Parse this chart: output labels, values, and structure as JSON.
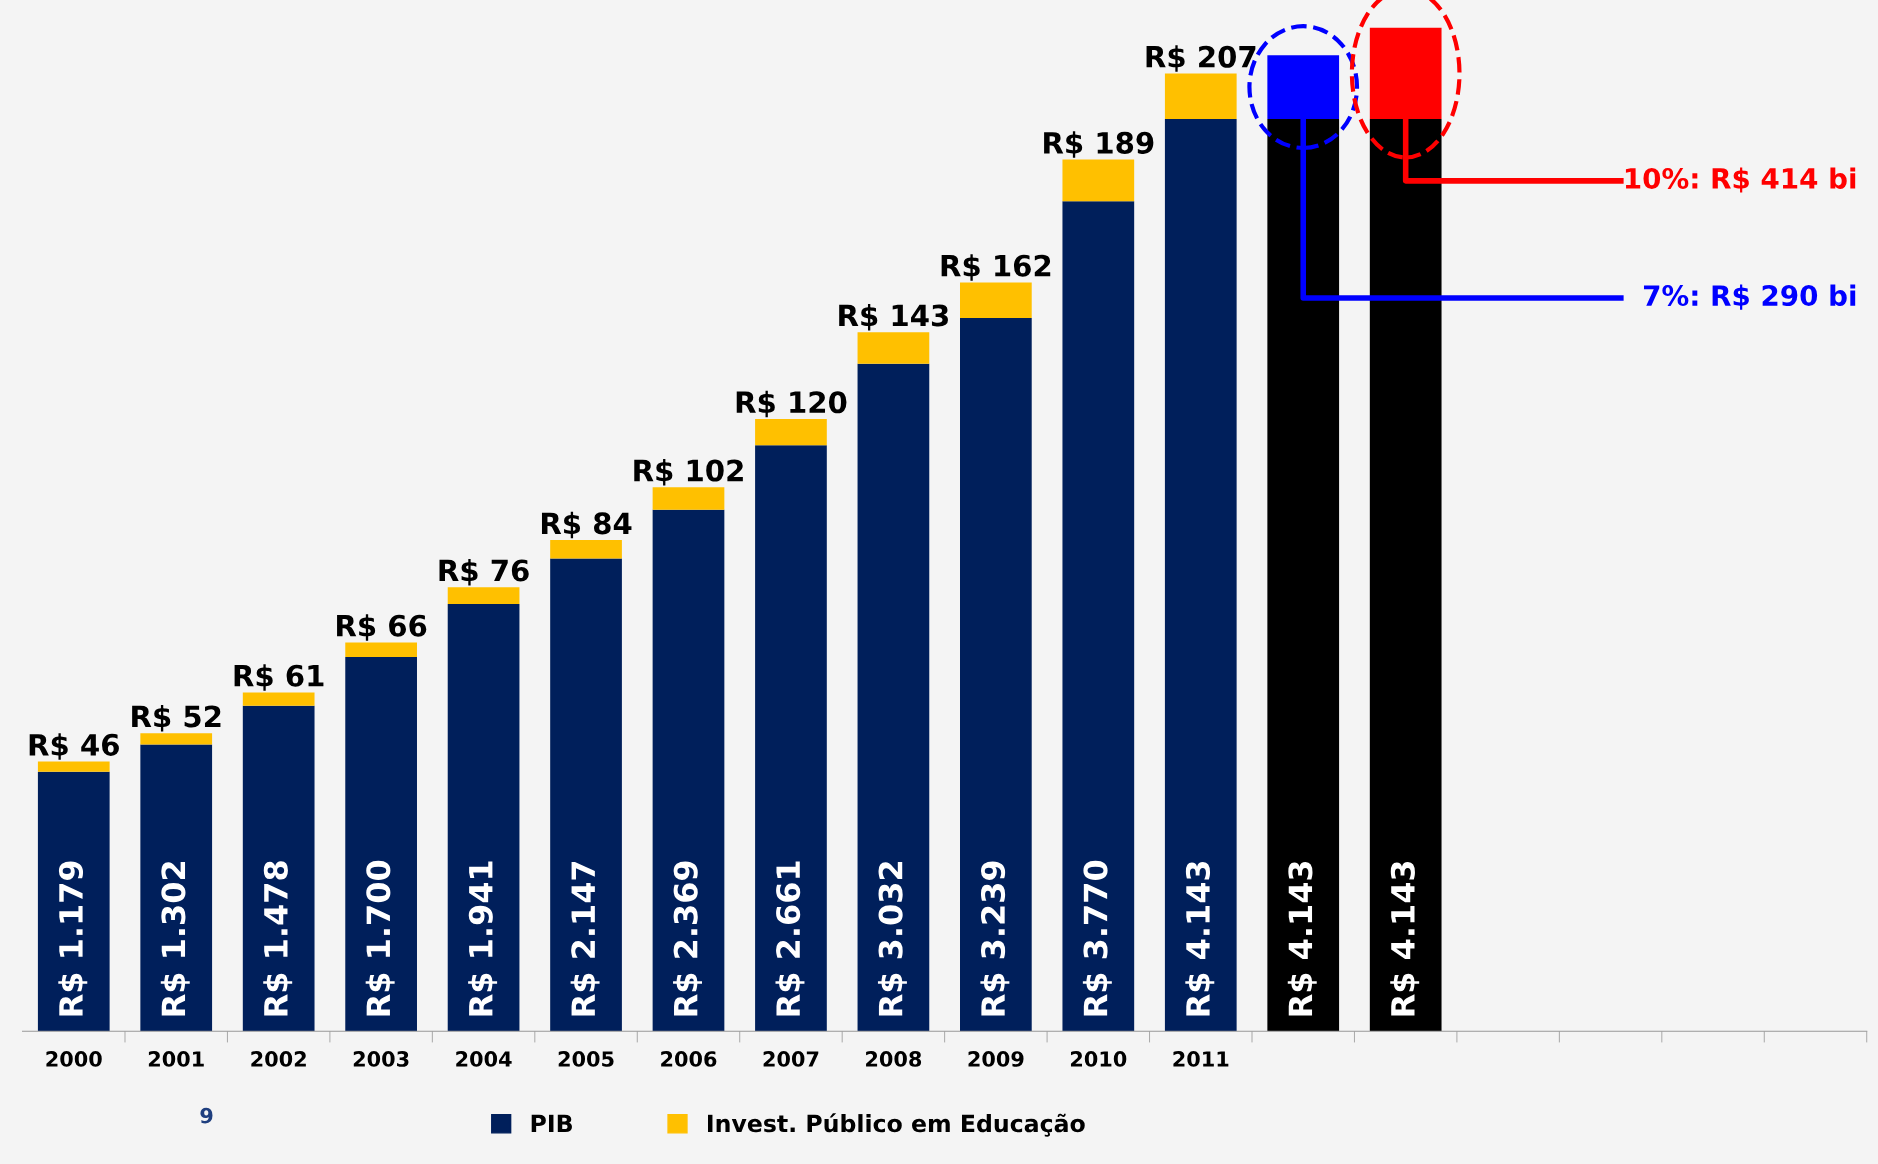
{
  "chart_data": {
    "type": "bar",
    "stacked": true,
    "categories": [
      "2000",
      "2001",
      "2002",
      "2003",
      "2004",
      "2005",
      "2006",
      "2007",
      "2008",
      "2009",
      "2010",
      "2011",
      null,
      null,
      null,
      null,
      null,
      null
    ],
    "series": [
      {
        "name": "PIB",
        "color": "#001f5b",
        "colors": [
          "#001f5b",
          "#001f5b",
          "#001f5b",
          "#001f5b",
          "#001f5b",
          "#001f5b",
          "#001f5b",
          "#001f5b",
          "#001f5b",
          "#001f5b",
          "#001f5b",
          "#001f5b",
          "#000000",
          "#000000",
          null,
          null,
          null,
          null
        ],
        "values": [
          1179,
          1302,
          1478,
          1700,
          1941,
          2147,
          2369,
          2661,
          3032,
          3239,
          3770,
          4143,
          4143,
          4143,
          null,
          null,
          null,
          null
        ],
        "value_labels": [
          "R$ 1.179",
          "R$ 1.302",
          "R$ 1.478",
          "R$ 1.700",
          "R$ 1.941",
          "R$ 2.147",
          "R$ 2.369",
          "R$ 2.661",
          "R$ 3.032",
          "R$ 3.239",
          "R$ 3.770",
          "R$ 4.143",
          "R$ 4.143",
          "R$ 4.143",
          null,
          null,
          null,
          null
        ]
      },
      {
        "name": "Invest. Público em Educação",
        "color": "#ffc000",
        "colors": [
          "#ffc000",
          "#ffc000",
          "#ffc000",
          "#ffc000",
          "#ffc000",
          "#ffc000",
          "#ffc000",
          "#ffc000",
          "#ffc000",
          "#ffc000",
          "#ffc000",
          "#ffc000",
          "#0000ff",
          "#ff0000",
          null,
          null,
          null,
          null
        ],
        "values": [
          46,
          52,
          61,
          66,
          76,
          84,
          102,
          120,
          143,
          162,
          189,
          207,
          290,
          414,
          null,
          null,
          null,
          null
        ],
        "value_labels": [
          "R$ 46",
          "R$ 52",
          "R$ 61",
          "R$ 66",
          "R$ 76",
          "R$ 84",
          "R$ 102",
          "R$ 120",
          "R$ 143",
          "R$ 162",
          "R$ 189",
          "R$ 207",
          null,
          null,
          null,
          null,
          null,
          null
        ]
      }
    ],
    "annotations": [
      "7%: R$ 290 bi",
      "10%: R$ 414 bi",
      "9"
    ],
    "legend": "bottom",
    "grid": false
  }
}
